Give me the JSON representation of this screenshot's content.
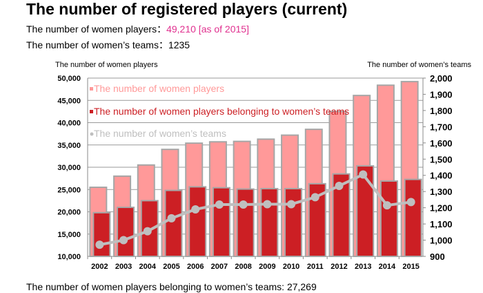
{
  "title": "The number of registered players (current)",
  "info": {
    "women_players_label": "The number of women players：",
    "women_players_value": "49,210 [as of 2015]",
    "teams_label": "The number of women’s teams：1235",
    "belonging_label": "The number of women players belonging to women’s teams: 27,269"
  },
  "chart_data": {
    "type": "bar",
    "left_axis_label": "The number of women players",
    "right_axis_label": "The number of women’s teams",
    "categories": [
      "2002",
      "2003",
      "2004",
      "2005",
      "2006",
      "2007",
      "2008",
      "2009",
      "2010",
      "2011",
      "2012",
      "2013",
      "2014",
      "2015"
    ],
    "ylim": [
      10000,
      50000
    ],
    "y_ticks": [
      "10,000",
      "15,000",
      "20,000",
      "25,000",
      "30,000",
      "35,000",
      "40,000",
      "45,000",
      "50,000"
    ],
    "y2lim": [
      900,
      2000
    ],
    "y2_ticks": [
      "900",
      "1,000",
      "1,100",
      "1,200",
      "1,300",
      "1,400",
      "1,500",
      "1,600",
      "1,700",
      "1,800",
      "1,900",
      "2,000"
    ],
    "grid": true,
    "legend_placement": "top-left",
    "series": [
      {
        "name": "The number of women players",
        "type": "bar",
        "axis": "left",
        "color": "#ff9999",
        "values": [
          25500,
          28000,
          30500,
          34000,
          35400,
          35700,
          35800,
          36300,
          37200,
          38500,
          42500,
          46100,
          48400,
          49210
        ]
      },
      {
        "name": "The number of women players belonging to women’s teams",
        "type": "bar",
        "axis": "left",
        "color": "#cc1f24",
        "values": [
          19800,
          21000,
          22500,
          24800,
          25600,
          25400,
          25100,
          25200,
          25200,
          26300,
          28500,
          30300,
          26900,
          27269
        ]
      },
      {
        "name": "The number of women’s teams",
        "type": "line",
        "axis": "right",
        "color": "#bfbfbf",
        "values": [
          972,
          1000,
          1055,
          1135,
          1190,
          1220,
          1220,
          1222,
          1222,
          1265,
          1335,
          1405,
          1215,
          1235
        ]
      }
    ]
  }
}
